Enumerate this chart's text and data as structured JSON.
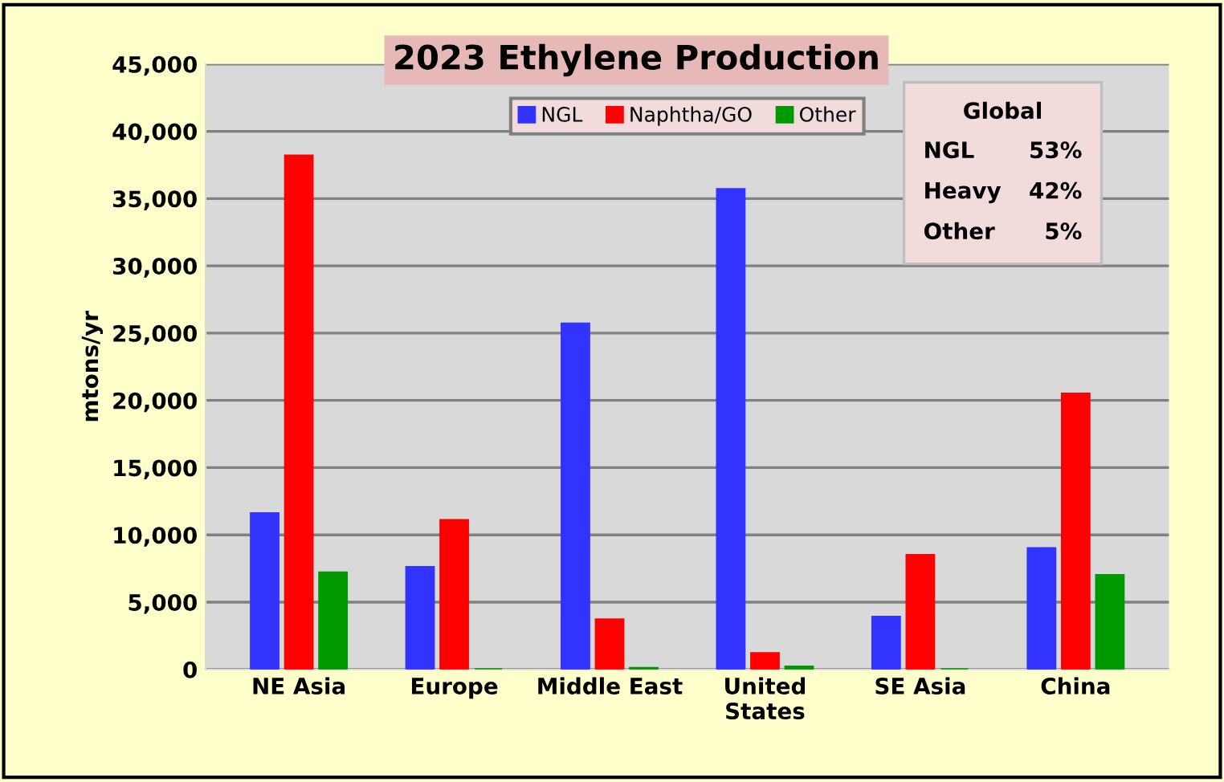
{
  "chart_data": {
    "type": "bar",
    "title": "2023 Ethylene Production",
    "ylabel": "mtons/yr",
    "categories": [
      "NE Asia",
      "Europe",
      "Middle East",
      "United\nStates",
      "SE Asia",
      "China"
    ],
    "series": [
      {
        "name": "NGL",
        "color": "#3333ff",
        "values": [
          11600,
          7600,
          25700,
          35700,
          3900,
          9000
        ]
      },
      {
        "name": "Naphtha/GO",
        "color": "#ff0000",
        "values": [
          38200,
          11100,
          3700,
          1200,
          8500,
          20500
        ]
      },
      {
        "name": "Other",
        "color": "#009900",
        "values": [
          7200,
          0,
          100,
          200,
          0,
          7000
        ]
      }
    ],
    "ylim": [
      0,
      45000
    ],
    "yticks": [
      {
        "value": 0,
        "label": "0"
      },
      {
        "value": 5000,
        "label": "5,000"
      },
      {
        "value": 10000,
        "label": "10,000"
      },
      {
        "value": 15000,
        "label": "15,000"
      },
      {
        "value": 20000,
        "label": "20,000"
      },
      {
        "value": 25000,
        "label": "25,000"
      },
      {
        "value": 30000,
        "label": "30,000"
      },
      {
        "value": 35000,
        "label": "35,000"
      },
      {
        "value": 40000,
        "label": "40,000"
      },
      {
        "value": 45000,
        "label": "45,000"
      }
    ],
    "grid": "y",
    "legend": "top",
    "annotations": [
      "Global",
      "NGL 53%",
      "Heavy 42%",
      "Other 5%"
    ]
  }
}
